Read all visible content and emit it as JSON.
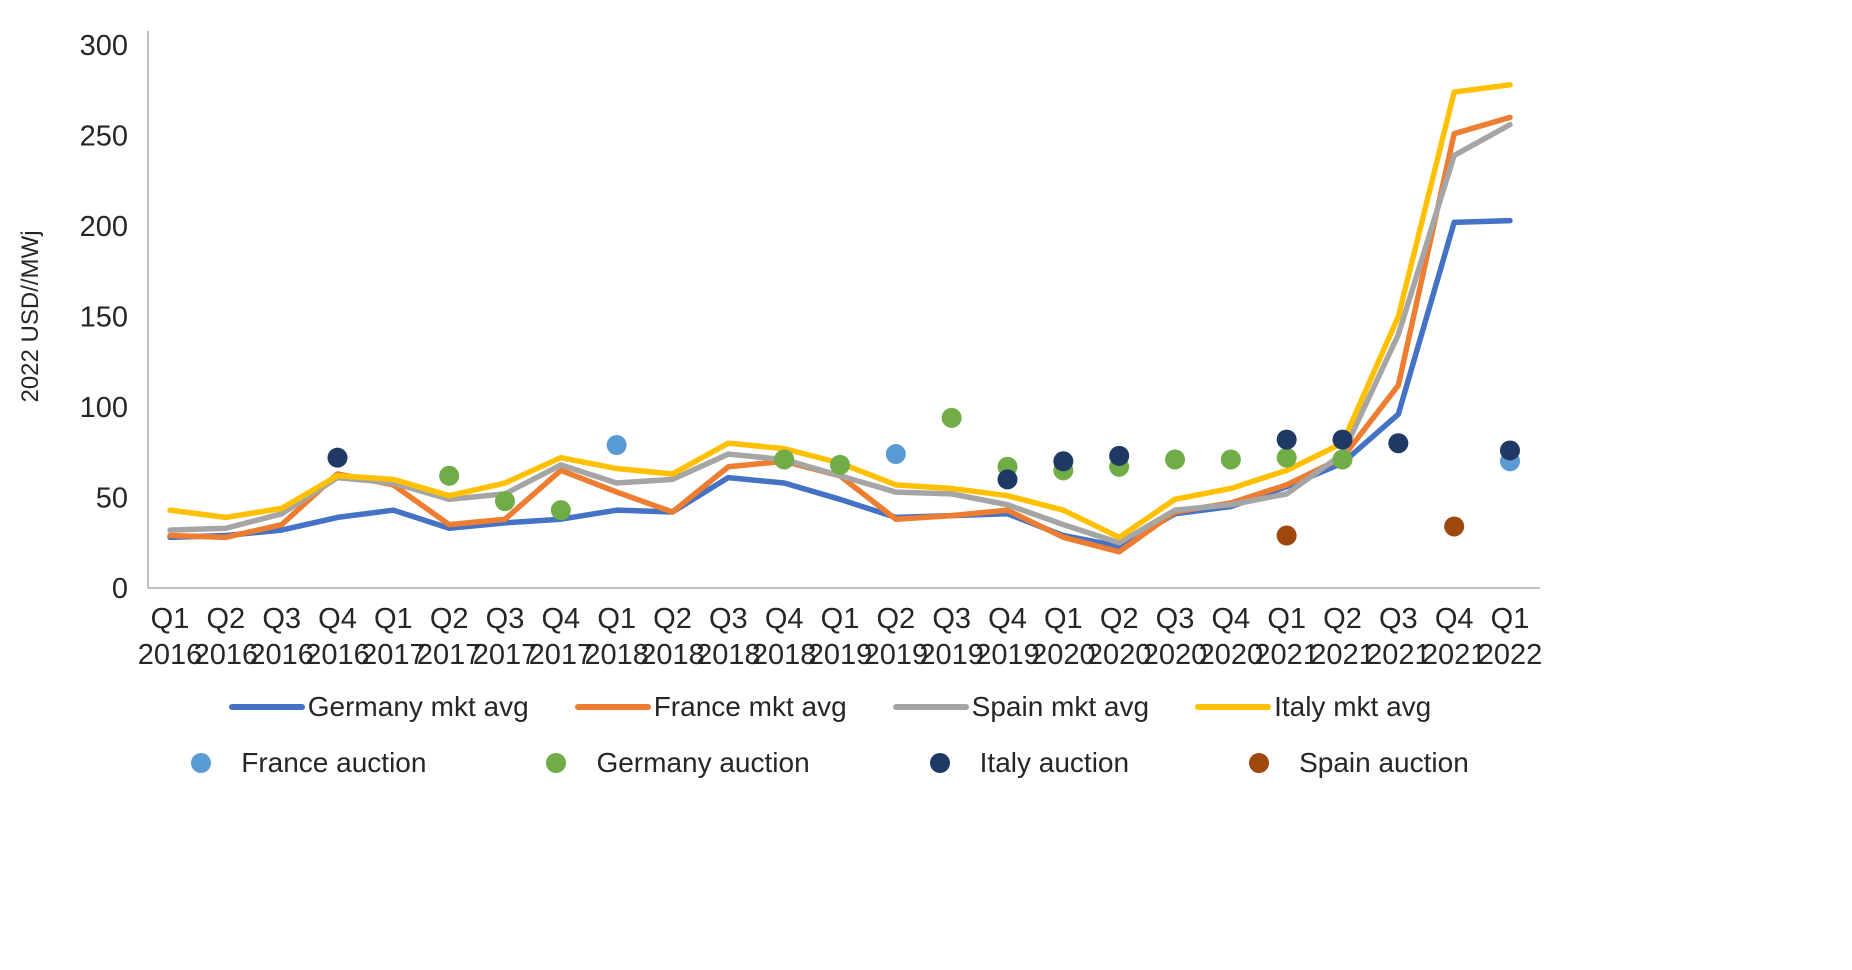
{
  "chart_data": {
    "type": "line",
    "title": "",
    "ylabel": "2022 USD//MWj",
    "ylim": [
      0,
      300
    ],
    "yticks": [
      0,
      50,
      100,
      150,
      200,
      250,
      300
    ],
    "grid": false,
    "legend_position": "bottom",
    "categories_line1": [
      "Q1",
      "Q2",
      "Q3",
      "Q4",
      "Q1",
      "Q2",
      "Q3",
      "Q4",
      "Q1",
      "Q2",
      "Q3",
      "Q4",
      "Q1",
      "Q2",
      "Q3",
      "Q4",
      "Q1",
      "Q2",
      "Q3",
      "Q4",
      "Q1",
      "Q2",
      "Q3",
      "Q4",
      "Q1"
    ],
    "categories_line2": [
      "2016",
      "2016",
      "2016",
      "2016",
      "2017",
      "2017",
      "2017",
      "2017",
      "2018",
      "2018",
      "2018",
      "2018",
      "2019",
      "2019",
      "2019",
      "2019",
      "2020",
      "2020",
      "2020",
      "2020",
      "2021",
      "2021",
      "2021",
      "2021",
      "2022"
    ],
    "line_series": [
      {
        "name": "Germany mkt avg",
        "color": "#4472C4",
        "values": [
          28,
          29,
          32,
          39,
          43,
          33,
          36,
          38,
          43,
          42,
          61,
          58,
          49,
          39,
          40,
          41,
          29,
          23,
          41,
          45,
          56,
          69,
          96,
          202,
          203
        ]
      },
      {
        "name": "France mkt avg",
        "color": "#ED7D31",
        "values": [
          29,
          28,
          35,
          63,
          57,
          35,
          38,
          65,
          53,
          42,
          67,
          70,
          62,
          38,
          40,
          43,
          28,
          20,
          42,
          47,
          57,
          72,
          112,
          251,
          260
        ]
      },
      {
        "name": "Spain mkt avg",
        "color": "#A5A5A5",
        "values": [
          32,
          33,
          41,
          61,
          58,
          49,
          52,
          68,
          58,
          60,
          74,
          71,
          62,
          53,
          52,
          46,
          35,
          25,
          43,
          46,
          52,
          74,
          140,
          239,
          256
        ]
      },
      {
        "name": "Italy mkt avg",
        "color": "#FFC000",
        "values": [
          43,
          39,
          44,
          62,
          60,
          51,
          58,
          72,
          66,
          63,
          80,
          77,
          69,
          57,
          55,
          51,
          43,
          28,
          49,
          55,
          65,
          80,
          150,
          274,
          278
        ]
      }
    ],
    "scatter_series": [
      {
        "name": "France auction",
        "color": "#5B9BD5",
        "points": [
          {
            "x": 8,
            "y": 79
          },
          {
            "x": 13,
            "y": 74
          },
          {
            "x": 24,
            "y": 70
          }
        ]
      },
      {
        "name": "Germany auction",
        "color": "#70AD47",
        "points": [
          {
            "x": 5,
            "y": 62
          },
          {
            "x": 6,
            "y": 48
          },
          {
            "x": 7,
            "y": 43
          },
          {
            "x": 11,
            "y": 71
          },
          {
            "x": 12,
            "y": 68
          },
          {
            "x": 14,
            "y": 94
          },
          {
            "x": 15,
            "y": 67
          },
          {
            "x": 16,
            "y": 65
          },
          {
            "x": 17,
            "y": 67
          },
          {
            "x": 18,
            "y": 71
          },
          {
            "x": 19,
            "y": 71
          },
          {
            "x": 20,
            "y": 72
          },
          {
            "x": 21,
            "y": 71
          }
        ]
      },
      {
        "name": "Italy auction",
        "color": "#1F3864",
        "points": [
          {
            "x": 3,
            "y": 72
          },
          {
            "x": 15,
            "y": 60
          },
          {
            "x": 16,
            "y": 70
          },
          {
            "x": 17,
            "y": 73
          },
          {
            "x": 20,
            "y": 82
          },
          {
            "x": 21,
            "y": 82
          },
          {
            "x": 22,
            "y": 80
          },
          {
            "x": 24,
            "y": 76
          }
        ]
      },
      {
        "name": "Spain auction",
        "color": "#9E480E",
        "points": [
          {
            "x": 20,
            "y": 29
          },
          {
            "x": 23,
            "y": 34
          }
        ]
      }
    ],
    "axis_color": "#BFBFBF",
    "text_color": "#262626"
  }
}
